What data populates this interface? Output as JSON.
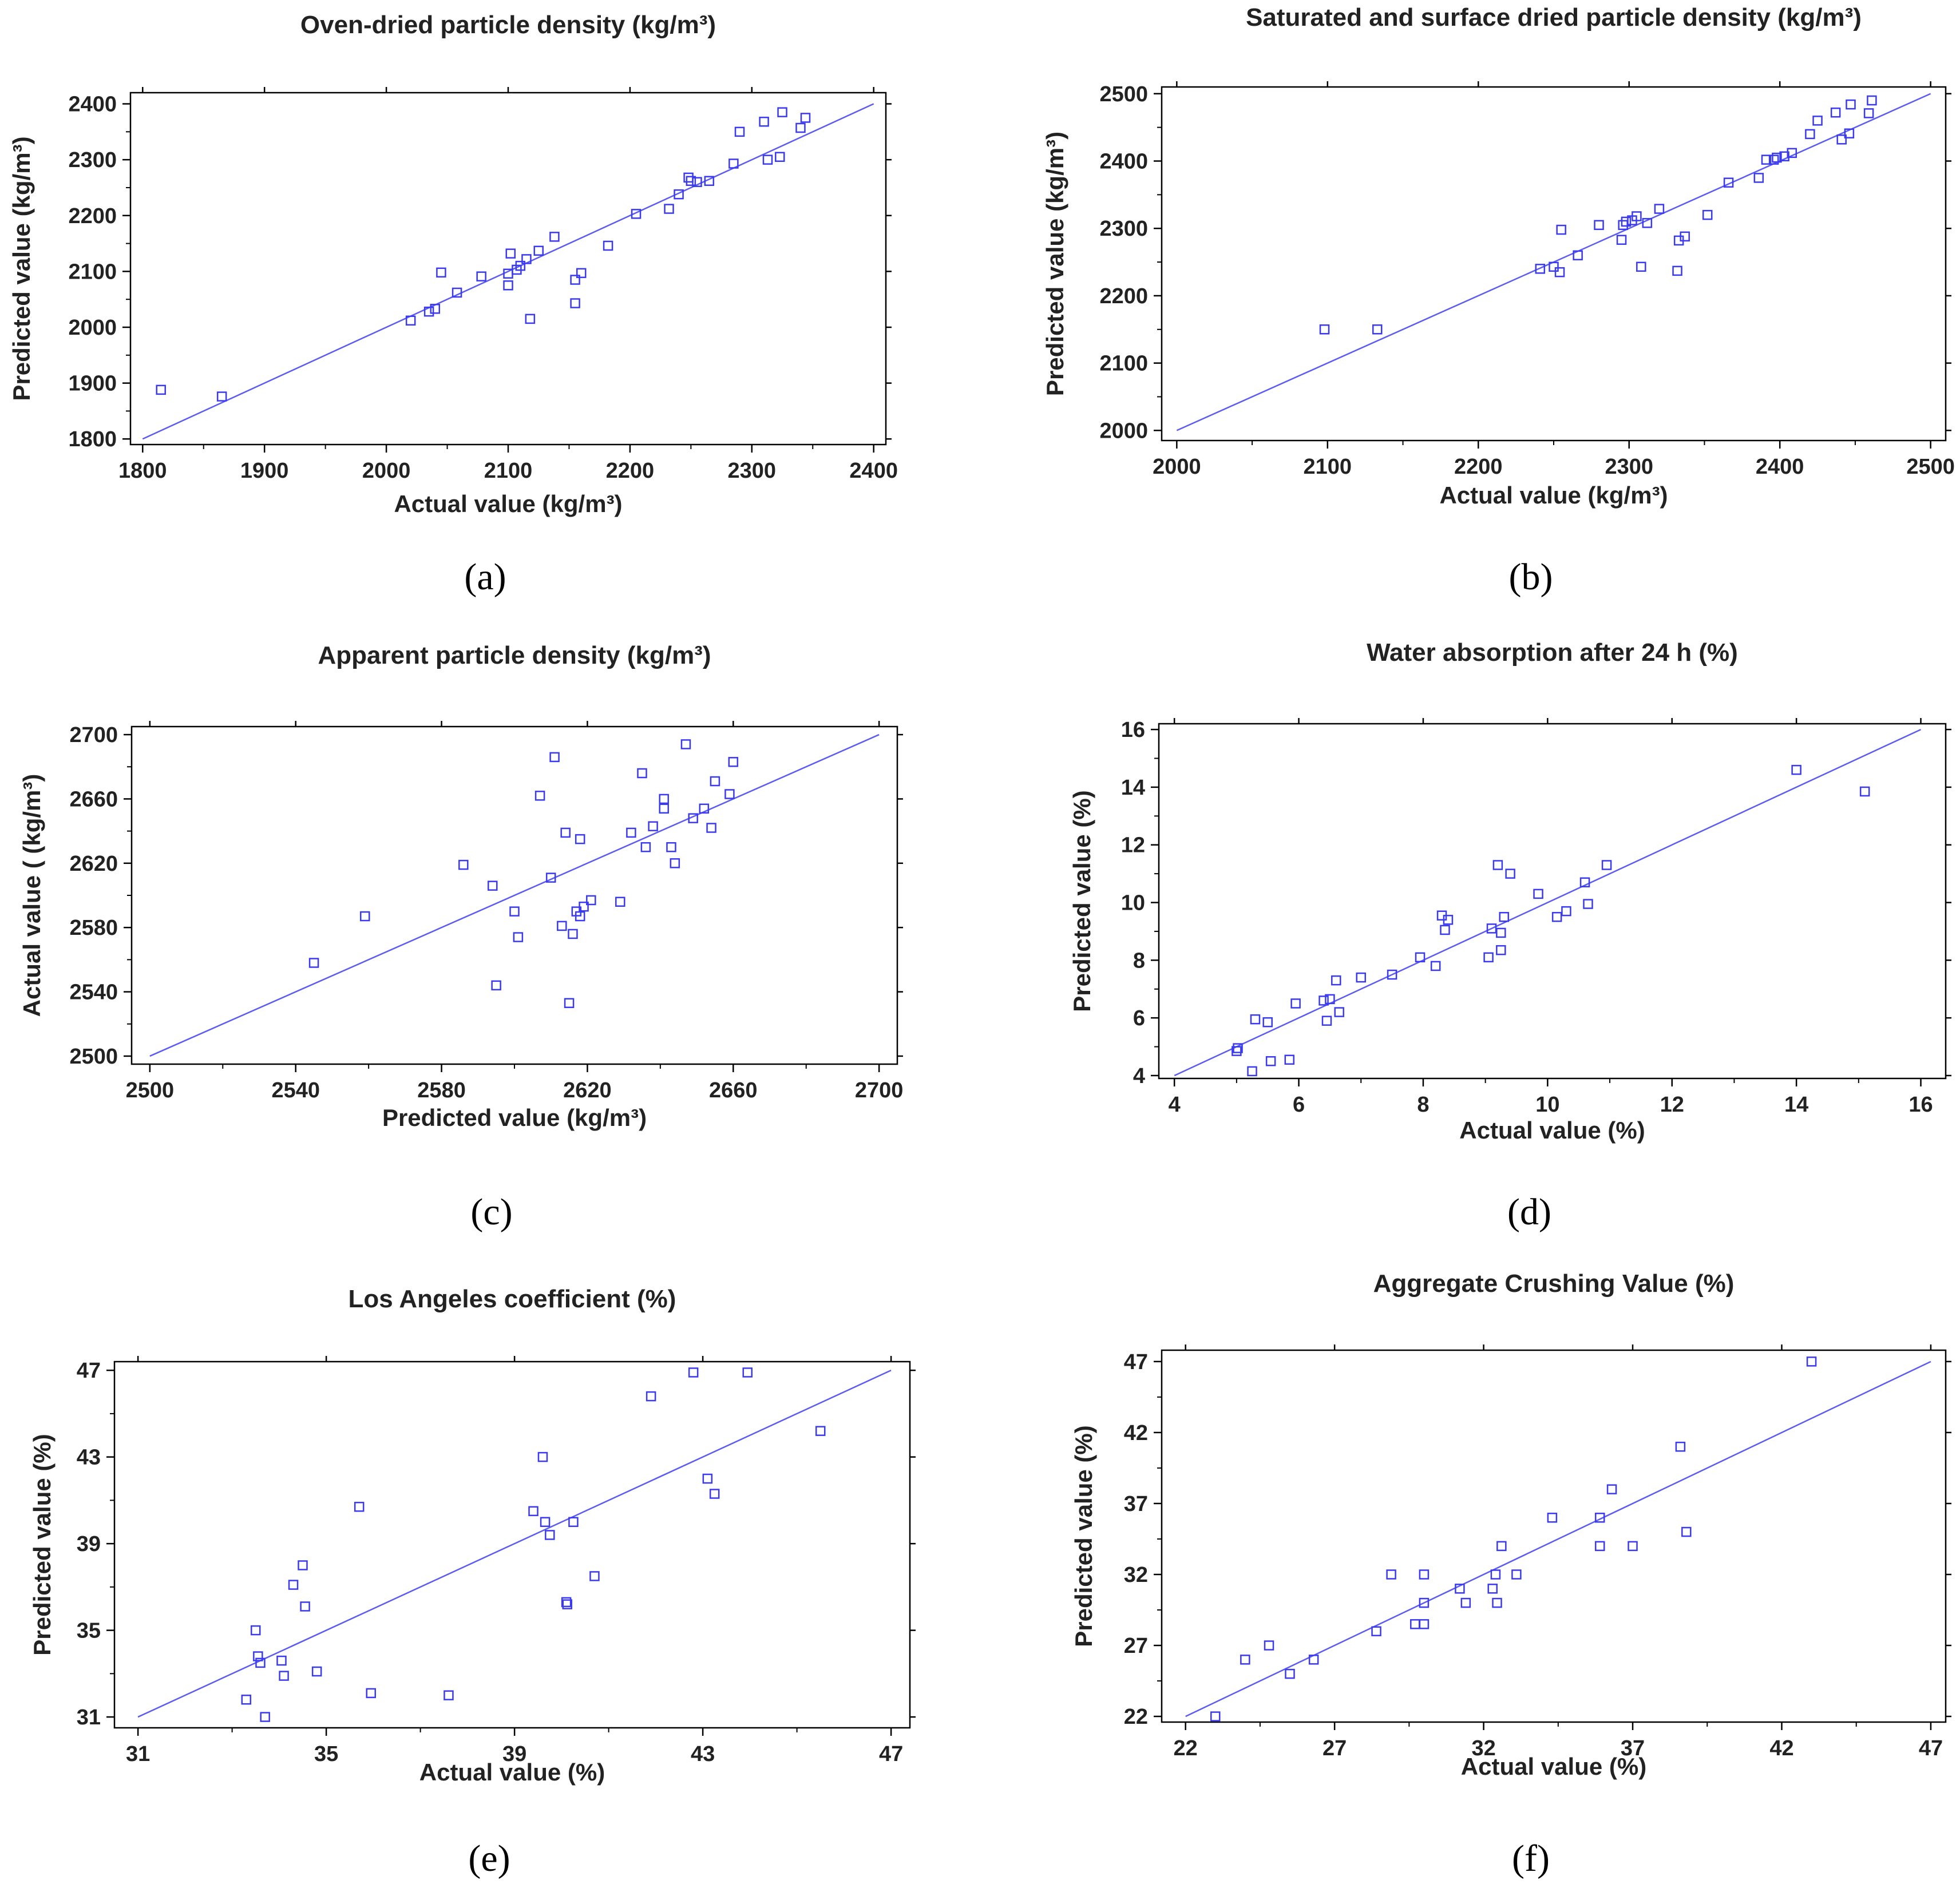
{
  "figure": {
    "point_color": "#3a3af0",
    "line_color": "#5b5bf2",
    "axis_color": "#000000"
  },
  "chart_data": [
    {
      "type": "scatter",
      "panel_label": "(a)",
      "title": "Oven-dried particle density  (kg/m³)",
      "xlabel": "Actual value (kg/m³)",
      "ylabel": "Predicted value (kg/m³)",
      "xlim": [
        1790,
        2410
      ],
      "ylim": [
        1790,
        2420
      ],
      "xticks": [
        1800,
        1900,
        2000,
        2100,
        2200,
        2300,
        2400
      ],
      "yticks": [
        1800,
        1900,
        2000,
        2100,
        2200,
        2300,
        2400
      ],
      "line": [
        [
          1800,
          1800
        ],
        [
          2400,
          2400
        ]
      ],
      "points": [
        [
          1815,
          1888
        ],
        [
          1865,
          1876
        ],
        [
          2020,
          2012
        ],
        [
          2035,
          2028
        ],
        [
          2040,
          2033
        ],
        [
          2045,
          2098
        ],
        [
          2058,
          2062
        ],
        [
          2078,
          2091
        ],
        [
          2100,
          2075
        ],
        [
          2100,
          2096
        ],
        [
          2102,
          2132
        ],
        [
          2107,
          2103
        ],
        [
          2110,
          2110
        ],
        [
          2115,
          2122
        ],
        [
          2118,
          2015
        ],
        [
          2125,
          2137
        ],
        [
          2138,
          2162
        ],
        [
          2155,
          2043
        ],
        [
          2155,
          2085
        ],
        [
          2160,
          2097
        ],
        [
          2182,
          2146
        ],
        [
          2205,
          2203
        ],
        [
          2232,
          2212
        ],
        [
          2240,
          2238
        ],
        [
          2248,
          2268
        ],
        [
          2250,
          2262
        ],
        [
          2255,
          2260
        ],
        [
          2265,
          2262
        ],
        [
          2285,
          2293
        ],
        [
          2290,
          2350
        ],
        [
          2310,
          2368
        ],
        [
          2313,
          2300
        ],
        [
          2323,
          2305
        ],
        [
          2325,
          2385
        ],
        [
          2340,
          2357
        ],
        [
          2344,
          2375
        ]
      ]
    },
    {
      "type": "scatter",
      "panel_label": "(b)",
      "title": "Saturated and surface dried particle density  (kg/m³)",
      "xlabel": "Actual value  (kg/m³)",
      "ylabel": "Predicted value (kg/m³)",
      "xlim": [
        1990,
        2510
      ],
      "ylim": [
        1985,
        2510
      ],
      "xticks": [
        2000,
        2100,
        2200,
        2300,
        2400,
        2500
      ],
      "yticks": [
        2000,
        2100,
        2200,
        2300,
        2400,
        2500
      ],
      "line": [
        [
          2000,
          2000
        ],
        [
          2500,
          2500
        ]
      ],
      "points": [
        [
          2098,
          2150
        ],
        [
          2133,
          2150
        ],
        [
          2241,
          2240
        ],
        [
          2250,
          2243
        ],
        [
          2254,
          2235
        ],
        [
          2255,
          2298
        ],
        [
          2266,
          2260
        ],
        [
          2280,
          2305
        ],
        [
          2295,
          2283
        ],
        [
          2296,
          2305
        ],
        [
          2298,
          2310
        ],
        [
          2302,
          2312
        ],
        [
          2305,
          2318
        ],
        [
          2308,
          2243
        ],
        [
          2312,
          2308
        ],
        [
          2320,
          2329
        ],
        [
          2332,
          2237
        ],
        [
          2333,
          2282
        ],
        [
          2337,
          2288
        ],
        [
          2352,
          2320
        ],
        [
          2366,
          2368
        ],
        [
          2386,
          2375
        ],
        [
          2391,
          2402
        ],
        [
          2396,
          2402
        ],
        [
          2398,
          2405
        ],
        [
          2403,
          2407
        ],
        [
          2408,
          2412
        ],
        [
          2420,
          2440
        ],
        [
          2425,
          2460
        ],
        [
          2437,
          2472
        ],
        [
          2441,
          2432
        ],
        [
          2446,
          2441
        ],
        [
          2447,
          2484
        ],
        [
          2459,
          2471
        ],
        [
          2461,
          2490
        ]
      ]
    },
    {
      "type": "scatter",
      "panel_label": "(c)",
      "title": "Apparent particle density  (kg/m³)",
      "xlabel": "Predicted value (kg/m³)",
      "ylabel": "Actual value  ( (kg/m³)",
      "xlim": [
        2495,
        2705
      ],
      "ylim": [
        2495,
        2705
      ],
      "xticks": [
        2500,
        2540,
        2580,
        2620,
        2660,
        2700
      ],
      "yticks": [
        2500,
        2540,
        2580,
        2620,
        2660,
        2700
      ],
      "line": [
        [
          2500,
          2500
        ],
        [
          2700,
          2700
        ]
      ],
      "points": [
        [
          2545,
          2558
        ],
        [
          2559,
          2587
        ],
        [
          2586,
          2619
        ],
        [
          2594,
          2606
        ],
        [
          2595,
          2544
        ],
        [
          2600,
          2590
        ],
        [
          2601,
          2574
        ],
        [
          2607,
          2662
        ],
        [
          2610,
          2611
        ],
        [
          2611,
          2686
        ],
        [
          2613,
          2581
        ],
        [
          2614,
          2639
        ],
        [
          2615,
          2533
        ],
        [
          2616,
          2576
        ],
        [
          2617,
          2590
        ],
        [
          2618,
          2587
        ],
        [
          2618,
          2635
        ],
        [
          2619,
          2593
        ],
        [
          2621,
          2597
        ],
        [
          2629,
          2596
        ],
        [
          2632,
          2639
        ],
        [
          2635,
          2676
        ],
        [
          2636,
          2630
        ],
        [
          2638,
          2643
        ],
        [
          2641,
          2660
        ],
        [
          2641,
          2654
        ],
        [
          2643,
          2630
        ],
        [
          2644,
          2620
        ],
        [
          2647,
          2694
        ],
        [
          2649,
          2648
        ],
        [
          2652,
          2654
        ],
        [
          2654,
          2642
        ],
        [
          2655,
          2671
        ],
        [
          2659,
          2663
        ],
        [
          2660,
          2683
        ]
      ]
    },
    {
      "type": "scatter",
      "panel_label": "(d)",
      "title": "Water absorption after 24 h (%)",
      "xlabel": "Actual value (%)",
      "ylabel": "Predicted value (%)",
      "xlim": [
        3.75,
        16.4
      ],
      "ylim": [
        3.9,
        16.2
      ],
      "xticks": [
        4,
        6,
        8,
        10,
        12,
        14,
        16
      ],
      "yticks": [
        4,
        6,
        8,
        10,
        12,
        14,
        16
      ],
      "line": [
        [
          4,
          4
        ],
        [
          16,
          16
        ]
      ],
      "points": [
        [
          5.0,
          4.85
        ],
        [
          5.02,
          4.95
        ],
        [
          5.25,
          4.15
        ],
        [
          5.3,
          5.95
        ],
        [
          5.5,
          5.85
        ],
        [
          5.55,
          4.5
        ],
        [
          5.85,
          4.55
        ],
        [
          5.95,
          6.5
        ],
        [
          6.4,
          6.6
        ],
        [
          6.45,
          5.9
        ],
        [
          6.5,
          6.65
        ],
        [
          6.6,
          7.3
        ],
        [
          6.65,
          6.2
        ],
        [
          7.0,
          7.4
        ],
        [
          7.5,
          7.5
        ],
        [
          7.95,
          8.1
        ],
        [
          8.2,
          7.8
        ],
        [
          8.3,
          9.55
        ],
        [
          8.35,
          9.05
        ],
        [
          8.4,
          9.4
        ],
        [
          9.05,
          8.1
        ],
        [
          9.1,
          9.1
        ],
        [
          9.2,
          11.3
        ],
        [
          9.25,
          8.95
        ],
        [
          9.25,
          8.35
        ],
        [
          9.3,
          9.5
        ],
        [
          9.4,
          11.0
        ],
        [
          9.85,
          10.3
        ],
        [
          10.15,
          9.5
        ],
        [
          10.3,
          9.7
        ],
        [
          10.6,
          10.7
        ],
        [
          10.65,
          9.95
        ],
        [
          10.95,
          11.3
        ],
        [
          14.0,
          14.6
        ],
        [
          15.1,
          13.85
        ]
      ]
    },
    {
      "type": "scatter",
      "panel_label": "(e)",
      "title": "Los Angeles coefficient (%)",
      "xlabel": "Actual value (%)",
      "ylabel": "Predicted value (%)",
      "xlim": [
        30.5,
        47.4
      ],
      "ylim": [
        30.5,
        47.4
      ],
      "xticks": [
        31,
        35,
        39,
        43,
        47
      ],
      "yticks": [
        31,
        35,
        39,
        43,
        47
      ],
      "line": [
        [
          31,
          31
        ],
        [
          47,
          47
        ]
      ],
      "points": [
        [
          33.3,
          31.8
        ],
        [
          33.5,
          35.0
        ],
        [
          33.55,
          33.8
        ],
        [
          33.6,
          33.5
        ],
        [
          33.7,
          31.0
        ],
        [
          34.05,
          33.6
        ],
        [
          34.1,
          32.9
        ],
        [
          34.3,
          37.1
        ],
        [
          34.5,
          38.0
        ],
        [
          34.55,
          36.1
        ],
        [
          34.8,
          33.1
        ],
        [
          35.7,
          40.7
        ],
        [
          35.95,
          32.1
        ],
        [
          37.6,
          32.0
        ],
        [
          39.4,
          40.5
        ],
        [
          39.6,
          43.0
        ],
        [
          39.65,
          40.0
        ],
        [
          39.75,
          39.4
        ],
        [
          40.1,
          36.3
        ],
        [
          40.12,
          36.2
        ],
        [
          40.25,
          40.0
        ],
        [
          40.7,
          37.5
        ],
        [
          41.9,
          45.8
        ],
        [
          42.8,
          46.9
        ],
        [
          43.1,
          42.0
        ],
        [
          43.25,
          41.3
        ],
        [
          43.95,
          46.9
        ],
        [
          45.5,
          44.2
        ]
      ]
    },
    {
      "type": "scatter",
      "panel_label": "(f)",
      "title": "Aggregate Crushing Value (%)",
      "xlabel": "Actual value (%)",
      "ylabel": "Predicted value (%)",
      "xlim": [
        21.2,
        47.5
      ],
      "ylim": [
        21.6,
        47.8
      ],
      "xticks": [
        22,
        27,
        32,
        37,
        42,
        47
      ],
      "yticks": [
        22,
        27,
        32,
        37,
        42,
        47
      ],
      "line": [
        [
          22,
          22
        ],
        [
          47,
          47
        ]
      ],
      "points": [
        [
          23.0,
          22.0
        ],
        [
          24.0,
          26.0
        ],
        [
          24.8,
          27.0
        ],
        [
          25.5,
          25.0
        ],
        [
          26.3,
          26.0
        ],
        [
          28.4,
          28.0
        ],
        [
          28.9,
          32.0
        ],
        [
          29.7,
          28.5
        ],
        [
          30.0,
          28.5
        ],
        [
          30.0,
          30.0
        ],
        [
          30.0,
          32.0
        ],
        [
          31.2,
          31.0
        ],
        [
          31.4,
          30.0
        ],
        [
          32.3,
          31.0
        ],
        [
          32.4,
          32.0
        ],
        [
          32.45,
          30.0
        ],
        [
          32.6,
          34.0
        ],
        [
          33.1,
          32.0
        ],
        [
          34.3,
          36.0
        ],
        [
          35.9,
          34.0
        ],
        [
          35.9,
          36.0
        ],
        [
          36.3,
          38.0
        ],
        [
          37.0,
          34.0
        ],
        [
          38.6,
          41.0
        ],
        [
          38.8,
          35.0
        ],
        [
          43.0,
          47.0
        ]
      ]
    }
  ]
}
